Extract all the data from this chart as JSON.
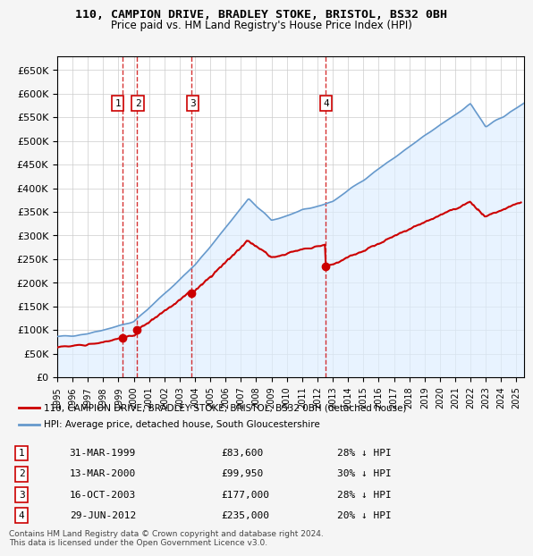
{
  "title1": "110, CAMPION DRIVE, BRADLEY STOKE, BRISTOL, BS32 0BH",
  "title2": "Price paid vs. HM Land Registry's House Price Index (HPI)",
  "ylabel": "",
  "xlim_start": 1995.0,
  "xlim_end": 2025.5,
  "ylim": [
    0,
    680000
  ],
  "yticks": [
    0,
    50000,
    100000,
    150000,
    200000,
    250000,
    300000,
    350000,
    400000,
    450000,
    500000,
    550000,
    600000,
    650000
  ],
  "sale_dates": [
    1999.25,
    2000.21,
    2003.79,
    2012.5
  ],
  "sale_prices": [
    83600,
    99950,
    177000,
    235000
  ],
  "sale_labels": [
    "1",
    "2",
    "3",
    "4"
  ],
  "sale_color": "#cc0000",
  "hpi_color": "#6699cc",
  "hpi_fill_color": "#ddeeff",
  "grid_color": "#cccccc",
  "background_color": "#f0f4f8",
  "plot_bg_color": "#ffffff",
  "legend_label_red": "110, CAMPION DRIVE, BRADLEY STOKE, BRISTOL, BS32 0BH (detached house)",
  "legend_label_blue": "HPI: Average price, detached house, South Gloucestershire",
  "table_entries": [
    {
      "num": "1",
      "date": "31-MAR-1999",
      "price": "£83,600",
      "hpi": "28% ↓ HPI"
    },
    {
      "num": "2",
      "date": "13-MAR-2000",
      "price": "£99,950",
      "hpi": "30% ↓ HPI"
    },
    {
      "num": "3",
      "date": "16-OCT-2003",
      "price": "£177,000",
      "hpi": "28% ↓ HPI"
    },
    {
      "num": "4",
      "date": "29-JUN-2012",
      "price": "£235,000",
      "hpi": "20% ↓ HPI"
    }
  ],
  "footnote": "Contains HM Land Registry data © Crown copyright and database right 2024.\nThis data is licensed under the Open Government Licence v3.0.",
  "vline_color": "#cc0000"
}
